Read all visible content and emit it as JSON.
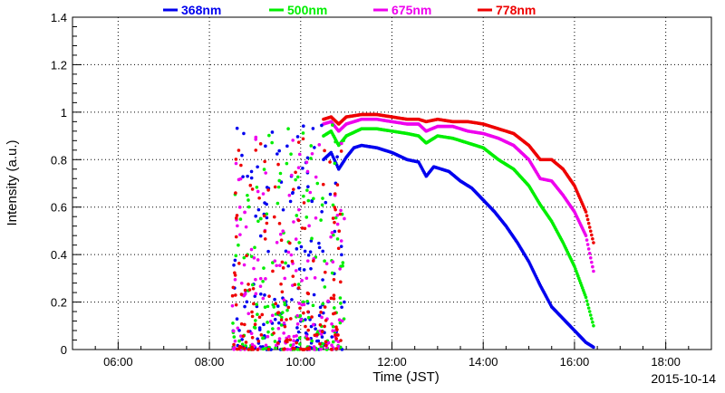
{
  "chart_data": {
    "type": "scatter",
    "xlabel": "Time (JST)",
    "ylabel": "Intensity (a.u.)",
    "date": "2015-10-14",
    "xlim": [
      "05:00",
      "19:00"
    ],
    "ylim": [
      0,
      1.4
    ],
    "x_ticks": [
      "06:00",
      "08:00",
      "10:00",
      "12:00",
      "14:00",
      "16:00",
      "18:00"
    ],
    "y_ticks": [
      "0",
      "0.2",
      "0.4",
      "0.6",
      "0.8",
      "1",
      "1.2",
      "1.4"
    ],
    "grid": true,
    "legend_position": "top",
    "series": [
      {
        "name": "368nm",
        "color": "#0000ee",
        "points": [
          [
            "10:30",
            0.8
          ],
          [
            "10:40",
            0.83
          ],
          [
            "10:50",
            0.76
          ],
          [
            "11:00",
            0.81
          ],
          [
            "11:10",
            0.85
          ],
          [
            "11:20",
            0.86
          ],
          [
            "11:40",
            0.85
          ],
          [
            "12:00",
            0.83
          ],
          [
            "12:20",
            0.8
          ],
          [
            "12:35",
            0.79
          ],
          [
            "12:45",
            0.73
          ],
          [
            "12:55",
            0.77
          ],
          [
            "13:15",
            0.75
          ],
          [
            "13:30",
            0.71
          ],
          [
            "13:45",
            0.68
          ],
          [
            "14:00",
            0.63
          ],
          [
            "14:15",
            0.58
          ],
          [
            "14:30",
            0.52
          ],
          [
            "14:45",
            0.45
          ],
          [
            "15:00",
            0.37
          ],
          [
            "15:15",
            0.27
          ],
          [
            "15:30",
            0.18
          ],
          [
            "15:45",
            0.13
          ],
          [
            "16:00",
            0.08
          ],
          [
            "16:15",
            0.03
          ],
          [
            "16:25",
            0.01
          ]
        ]
      },
      {
        "name": "500nm",
        "color": "#00ee00",
        "points": [
          [
            "10:30",
            0.9
          ],
          [
            "10:40",
            0.92
          ],
          [
            "10:50",
            0.86
          ],
          [
            "11:00",
            0.9
          ],
          [
            "11:20",
            0.93
          ],
          [
            "11:40",
            0.93
          ],
          [
            "12:00",
            0.92
          ],
          [
            "12:20",
            0.91
          ],
          [
            "12:35",
            0.9
          ],
          [
            "12:45",
            0.87
          ],
          [
            "13:00",
            0.9
          ],
          [
            "13:20",
            0.89
          ],
          [
            "13:40",
            0.87
          ],
          [
            "14:00",
            0.85
          ],
          [
            "14:20",
            0.8
          ],
          [
            "14:40",
            0.76
          ],
          [
            "15:00",
            0.69
          ],
          [
            "15:15",
            0.61
          ],
          [
            "15:30",
            0.54
          ],
          [
            "15:45",
            0.45
          ],
          [
            "16:00",
            0.35
          ],
          [
            "16:15",
            0.22
          ],
          [
            "16:25",
            0.1
          ]
        ]
      },
      {
        "name": "675nm",
        "color": "#ee00ee",
        "points": [
          [
            "10:30",
            0.95
          ],
          [
            "10:40",
            0.96
          ],
          [
            "10:50",
            0.92
          ],
          [
            "11:00",
            0.95
          ],
          [
            "11:20",
            0.97
          ],
          [
            "11:40",
            0.97
          ],
          [
            "12:00",
            0.96
          ],
          [
            "12:20",
            0.95
          ],
          [
            "12:35",
            0.95
          ],
          [
            "12:45",
            0.92
          ],
          [
            "13:00",
            0.94
          ],
          [
            "13:20",
            0.94
          ],
          [
            "13:40",
            0.92
          ],
          [
            "14:00",
            0.91
          ],
          [
            "14:20",
            0.89
          ],
          [
            "14:40",
            0.86
          ],
          [
            "15:00",
            0.8
          ],
          [
            "15:15",
            0.72
          ],
          [
            "15:30",
            0.71
          ],
          [
            "15:45",
            0.65
          ],
          [
            "16:00",
            0.58
          ],
          [
            "16:15",
            0.48
          ],
          [
            "16:25",
            0.33
          ]
        ]
      },
      {
        "name": "778nm",
        "color": "#ee0000",
        "points": [
          [
            "10:30",
            0.97
          ],
          [
            "10:40",
            0.98
          ],
          [
            "10:50",
            0.95
          ],
          [
            "11:00",
            0.98
          ],
          [
            "11:20",
            0.99
          ],
          [
            "11:40",
            0.99
          ],
          [
            "12:00",
            0.98
          ],
          [
            "12:20",
            0.97
          ],
          [
            "12:35",
            0.97
          ],
          [
            "12:45",
            0.96
          ],
          [
            "13:00",
            0.97
          ],
          [
            "13:20",
            0.96
          ],
          [
            "13:40",
            0.96
          ],
          [
            "14:00",
            0.95
          ],
          [
            "14:20",
            0.93
          ],
          [
            "14:40",
            0.91
          ],
          [
            "15:00",
            0.86
          ],
          [
            "15:15",
            0.8
          ],
          [
            "15:30",
            0.8
          ],
          [
            "15:45",
            0.76
          ],
          [
            "16:00",
            0.69
          ],
          [
            "16:15",
            0.58
          ],
          [
            "16:25",
            0.45
          ]
        ]
      }
    ]
  }
}
